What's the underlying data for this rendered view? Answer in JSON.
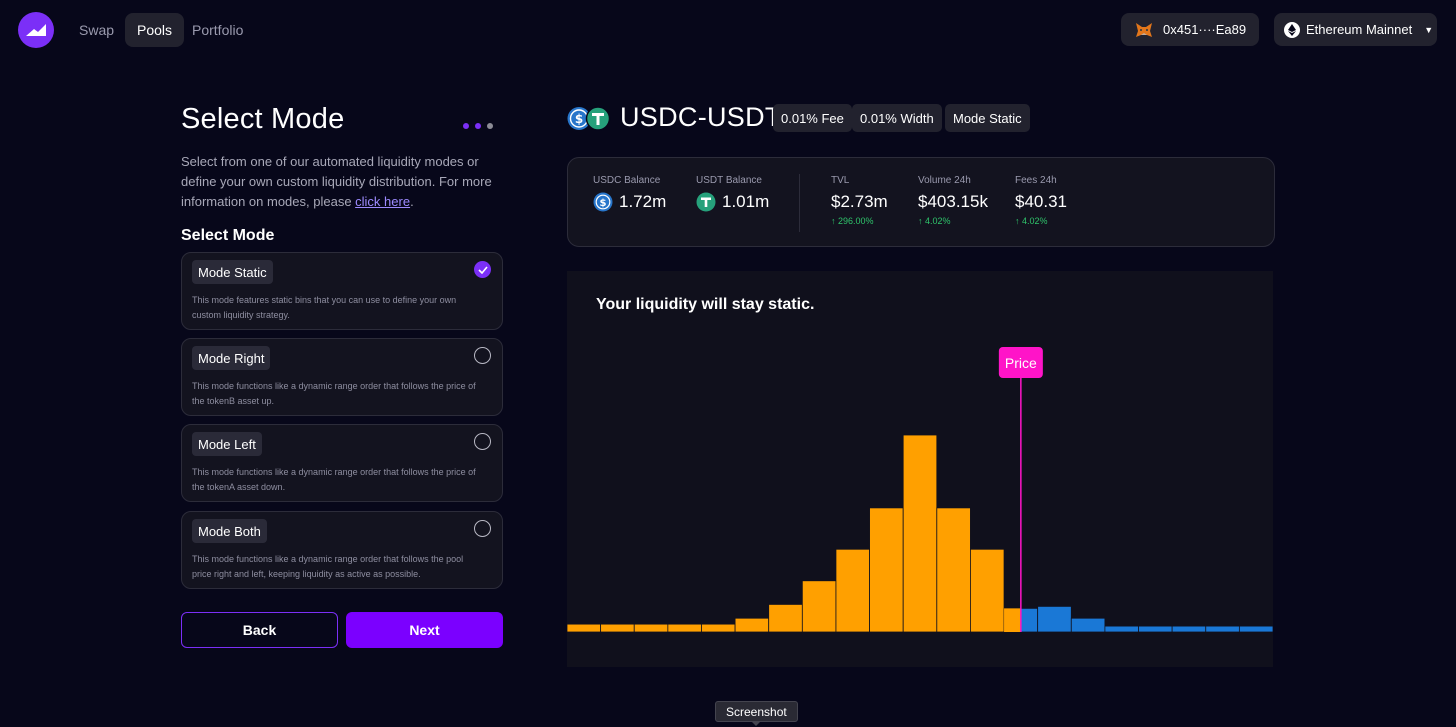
{
  "nav": {
    "links": [
      "Swap",
      "Pools",
      "Portfolio"
    ],
    "active": "Pools",
    "wallet": "0x451····Ea89",
    "network": "Ethereum Mainnet"
  },
  "select_mode": {
    "title": "Select Mode",
    "intro": "Select from one of our automated liquidity modes or define your own custom liquidity distribution. For more information on modes, please ",
    "intro_link": "click here",
    "intro_end": ".",
    "heading": "Select Mode",
    "modes": [
      {
        "label": "Mode Static",
        "desc": "This mode features static bins that you can use to define your own custom liquidity strategy.",
        "selected": true
      },
      {
        "label": "Mode Right",
        "desc": "This mode functions like a dynamic range order that follows the price of the tokenB asset up.",
        "selected": false
      },
      {
        "label": "Mode Left",
        "desc": "This mode functions like a dynamic range order that follows the price of the tokenA asset down.",
        "selected": false
      },
      {
        "label": "Mode Both",
        "desc": "This mode functions like a dynamic range order that follows the pool price right and left, keeping liquidity as active as possible.",
        "selected": false
      }
    ],
    "back_label": "Back",
    "next_label": "Next"
  },
  "pool": {
    "pair": "USDC-USDT",
    "fee": "0.01% Fee",
    "width": "0.01% Width",
    "mode": "Mode Static"
  },
  "stats": {
    "usdc_label": "USDC Balance",
    "usdc_value": "1.72m",
    "usdt_label": "USDT Balance",
    "usdt_value": "1.01m",
    "tvl_label": "TVL",
    "tvl_value": "$2.73m",
    "tvl_change": "↑ 296.00%",
    "volume_label": "Volume 24h",
    "volume_value": "$403.15k",
    "volume_change": "↑ 4.02%",
    "fees_label": "Fees 24h",
    "fees_value": "$40.31",
    "fees_change": "↑ 4.02%"
  },
  "chart_data": {
    "type": "bar",
    "title": "Your liquidity will stay static.",
    "marker_label": "Price",
    "values": [
      4,
      4,
      4,
      4,
      4,
      7,
      14,
      26,
      42,
      63,
      100,
      63,
      42,
      12,
      13,
      7,
      3,
      3,
      3,
      3,
      3
    ],
    "colors": [
      "orange",
      "orange",
      "orange",
      "orange",
      "orange",
      "orange",
      "orange",
      "orange",
      "orange",
      "orange",
      "orange",
      "orange",
      "orange",
      "split",
      "blue",
      "blue",
      "blue",
      "blue",
      "blue",
      "blue",
      "blue"
    ],
    "price_bin_index": 13,
    "orange": "#ffa000",
    "blue": "#1a78d6",
    "marker_color": "#ff14c8"
  },
  "tooltip": "Screenshot"
}
